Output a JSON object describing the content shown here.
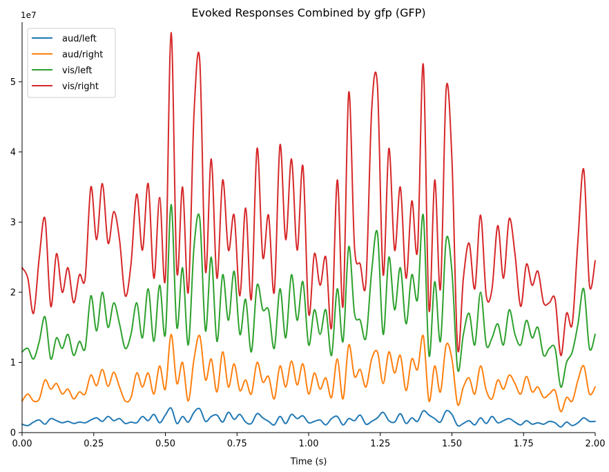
{
  "chart_data": {
    "type": "line",
    "title": "Evoked Responses Combined by gfp (GFP)",
    "xlabel": "Time (s)",
    "ylabel": "",
    "y_scale_label": "1e7",
    "xlim": [
      0.0,
      2.0
    ],
    "ylim": [
      0.0,
      5.85
    ],
    "x_ticks": [
      0.0,
      0.25,
      0.5,
      0.75,
      1.0,
      1.25,
      1.5,
      1.75,
      2.0
    ],
    "x_tick_labels": [
      "0.00",
      "0.25",
      "0.50",
      "0.75",
      "1.00",
      "1.25",
      "1.50",
      "1.75",
      "2.00"
    ],
    "y_ticks": [
      0,
      1,
      2,
      3,
      4,
      5
    ],
    "y_tick_labels": [
      "0",
      "1",
      "2",
      "3",
      "4",
      "5"
    ],
    "grid": false,
    "legend_position": "top-left",
    "x": [
      0.0,
      0.02,
      0.04,
      0.06,
      0.08,
      0.1,
      0.12,
      0.14,
      0.16,
      0.18,
      0.2,
      0.22,
      0.24,
      0.26,
      0.28,
      0.3,
      0.32,
      0.34,
      0.36,
      0.38,
      0.4,
      0.42,
      0.44,
      0.46,
      0.48,
      0.5,
      0.52,
      0.54,
      0.56,
      0.58,
      0.6,
      0.62,
      0.64,
      0.66,
      0.68,
      0.7,
      0.72,
      0.74,
      0.76,
      0.78,
      0.8,
      0.82,
      0.84,
      0.86,
      0.88,
      0.9,
      0.92,
      0.94,
      0.96,
      0.98,
      1.0,
      1.02,
      1.04,
      1.06,
      1.08,
      1.1,
      1.12,
      1.14,
      1.16,
      1.18,
      1.2,
      1.22,
      1.24,
      1.26,
      1.28,
      1.3,
      1.32,
      1.34,
      1.36,
      1.38,
      1.4,
      1.42,
      1.44,
      1.46,
      1.48,
      1.5,
      1.52,
      1.54,
      1.56,
      1.58,
      1.6,
      1.62,
      1.64,
      1.66,
      1.68,
      1.7,
      1.72,
      1.74,
      1.76,
      1.78,
      1.8,
      1.82,
      1.84,
      1.86,
      1.88,
      1.9,
      1.92,
      1.94,
      1.96,
      1.98,
      2.0
    ],
    "series": [
      {
        "name": "aud/left",
        "color": "#1f77b4",
        "values": [
          0.12,
          0.1,
          0.15,
          0.18,
          0.12,
          0.2,
          0.17,
          0.14,
          0.16,
          0.13,
          0.15,
          0.14,
          0.18,
          0.21,
          0.16,
          0.23,
          0.17,
          0.2,
          0.13,
          0.15,
          0.14,
          0.23,
          0.17,
          0.26,
          0.14,
          0.25,
          0.35,
          0.13,
          0.23,
          0.15,
          0.29,
          0.34,
          0.16,
          0.23,
          0.25,
          0.15,
          0.29,
          0.19,
          0.26,
          0.15,
          0.13,
          0.27,
          0.21,
          0.16,
          0.11,
          0.23,
          0.13,
          0.26,
          0.2,
          0.24,
          0.14,
          0.16,
          0.18,
          0.11,
          0.2,
          0.23,
          0.11,
          0.2,
          0.17,
          0.25,
          0.12,
          0.16,
          0.21,
          0.29,
          0.17,
          0.15,
          0.27,
          0.13,
          0.21,
          0.16,
          0.31,
          0.25,
          0.2,
          0.15,
          0.31,
          0.26,
          0.1,
          0.13,
          0.17,
          0.11,
          0.21,
          0.13,
          0.23,
          0.14,
          0.17,
          0.2,
          0.15,
          0.11,
          0.17,
          0.12,
          0.14,
          0.12,
          0.16,
          0.14,
          0.08,
          0.15,
          0.1,
          0.14,
          0.21,
          0.16,
          0.16
        ]
      },
      {
        "name": "aud/right",
        "color": "#ff7f0e",
        "values": [
          0.45,
          0.55,
          0.45,
          0.48,
          0.75,
          0.62,
          0.7,
          0.55,
          0.62,
          0.48,
          0.58,
          0.55,
          0.82,
          0.67,
          0.9,
          0.66,
          0.86,
          0.65,
          0.45,
          0.5,
          0.85,
          0.65,
          0.85,
          0.55,
          0.95,
          0.62,
          1.4,
          0.7,
          1.0,
          0.45,
          1.05,
          1.38,
          0.75,
          1.05,
          0.58,
          1.15,
          0.65,
          0.98,
          0.6,
          0.75,
          0.55,
          1.0,
          0.72,
          0.8,
          0.48,
          0.95,
          0.65,
          1.02,
          0.68,
          0.98,
          0.55,
          0.85,
          0.62,
          0.78,
          0.5,
          1.05,
          0.48,
          1.25,
          0.8,
          0.9,
          0.65,
          1.05,
          1.15,
          0.7,
          1.15,
          0.85,
          1.1,
          0.6,
          1.05,
          0.9,
          1.38,
          0.45,
          0.95,
          0.58,
          1.25,
          1.05,
          0.4,
          0.65,
          0.78,
          0.55,
          0.95,
          0.6,
          0.48,
          0.75,
          0.62,
          0.82,
          0.7,
          0.55,
          0.8,
          0.58,
          0.65,
          0.5,
          0.55,
          0.6,
          0.3,
          0.5,
          0.45,
          0.75,
          0.95,
          0.55,
          0.65
        ]
      },
      {
        "name": "vis/left",
        "color": "#2ca02c",
        "values": [
          1.15,
          1.2,
          1.05,
          1.3,
          1.65,
          1.05,
          1.35,
          1.2,
          1.4,
          1.1,
          1.3,
          1.2,
          1.95,
          1.45,
          2.0,
          1.5,
          1.85,
          1.55,
          1.2,
          1.4,
          1.85,
          1.35,
          2.05,
          1.3,
          2.1,
          1.4,
          3.25,
          1.5,
          2.35,
          1.25,
          2.65,
          3.05,
          1.45,
          2.5,
          1.3,
          2.25,
          1.6,
          2.3,
          1.4,
          1.9,
          1.15,
          2.1,
          1.75,
          1.75,
          1.2,
          2.05,
          1.35,
          2.25,
          1.6,
          2.15,
          1.25,
          1.75,
          1.4,
          1.75,
          1.1,
          2.05,
          1.3,
          2.65,
          1.7,
          1.6,
          1.35,
          2.3,
          2.85,
          1.4,
          2.5,
          1.75,
          2.35,
          1.55,
          2.25,
          1.9,
          3.1,
          1.1,
          2.15,
          1.3,
          2.75,
          2.3,
          0.9,
          1.4,
          1.7,
          1.25,
          2.0,
          1.25,
          1.35,
          1.55,
          1.25,
          1.75,
          1.4,
          1.25,
          1.6,
          1.35,
          1.5,
          1.1,
          1.2,
          1.2,
          0.65,
          1.0,
          1.15,
          1.55,
          2.05,
          1.2,
          1.4
        ]
      },
      {
        "name": "vis/right",
        "color": "#d62728",
        "values": [
          2.35,
          2.2,
          1.7,
          2.5,
          3.05,
          1.8,
          2.55,
          2.0,
          2.35,
          1.85,
          2.25,
          2.2,
          3.5,
          2.75,
          3.55,
          2.7,
          3.15,
          2.75,
          1.95,
          2.4,
          3.4,
          2.6,
          3.55,
          2.2,
          3.35,
          2.2,
          5.7,
          2.3,
          3.5,
          2.0,
          4.55,
          5.3,
          2.3,
          3.9,
          2.2,
          3.6,
          2.6,
          3.1,
          1.95,
          3.2,
          1.9,
          4.05,
          2.5,
          3.1,
          2.0,
          4.1,
          2.75,
          3.9,
          2.6,
          3.8,
          1.7,
          2.55,
          2.1,
          2.5,
          1.5,
          3.6,
          1.8,
          4.85,
          2.65,
          2.4,
          2.15,
          4.6,
          4.95,
          2.25,
          4.05,
          2.6,
          3.5,
          2.2,
          3.3,
          2.6,
          5.25,
          1.75,
          3.6,
          2.05,
          4.9,
          3.9,
          1.2,
          2.2,
          2.7,
          2.05,
          3.1,
          1.95,
          2.05,
          2.95,
          2.2,
          3.05,
          2.55,
          1.8,
          2.4,
          2.1,
          2.3,
          1.85,
          1.85,
          1.9,
          1.1,
          1.7,
          1.55,
          2.75,
          3.75,
          2.1,
          2.45
        ]
      }
    ]
  }
}
